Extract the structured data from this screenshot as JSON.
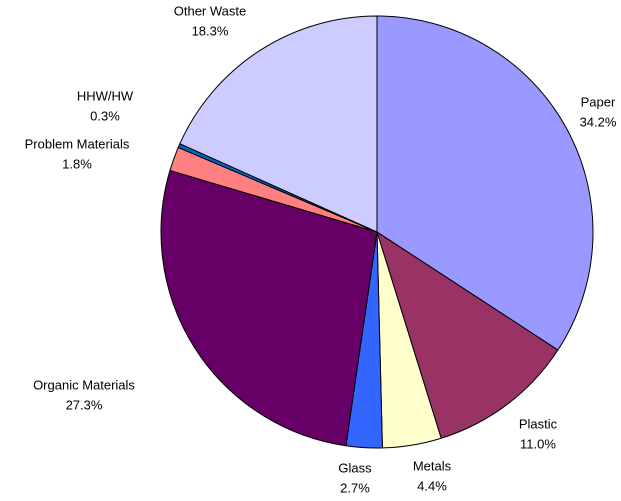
{
  "chart_data": {
    "type": "pie",
    "categories": [
      "Paper",
      "Plastic",
      "Metals",
      "Glass",
      "Organic Materials",
      "Problem Materials",
      "HHW/HW",
      "Other Waste"
    ],
    "values": [
      34.2,
      11.0,
      4.4,
      2.7,
      27.3,
      1.8,
      0.3,
      18.3
    ],
    "value_labels": [
      "34.2%",
      "11.0%",
      "4.4%",
      "2.7%",
      "27.3%",
      "1.8%",
      "0.3%",
      "18.3%"
    ],
    "colors": [
      "#9999ff",
      "#993366",
      "#ffffcc",
      "#3366ff",
      "#660066",
      "#ff8080",
      "#0066cc",
      "#ccccff"
    ]
  }
}
